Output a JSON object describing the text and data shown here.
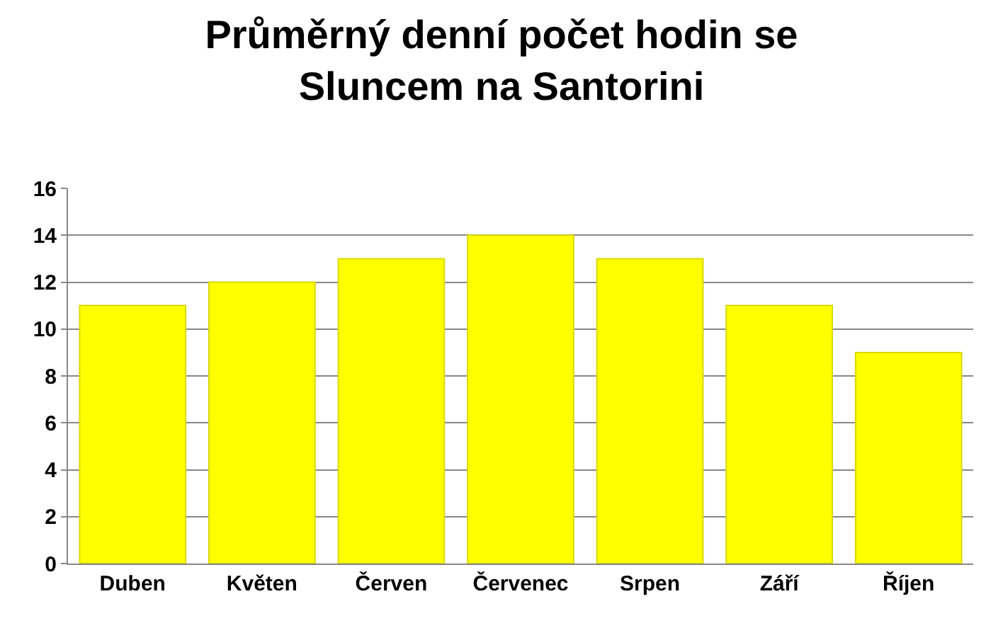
{
  "chart_data": {
    "type": "bar",
    "title": "Průměrný denní počet hodin se\nSluncem na Santorini",
    "categories": [
      "Duben",
      "Květen",
      "Červen",
      "Červenec",
      "Srpen",
      "Září",
      "Říjen"
    ],
    "values": [
      11,
      12,
      13,
      14,
      13,
      11,
      9
    ],
    "color": "#ffff00",
    "ylim": [
      0,
      16
    ],
    "yticks": [
      0,
      2,
      4,
      6,
      8,
      10,
      12,
      14,
      16
    ],
    "grid": "y"
  }
}
